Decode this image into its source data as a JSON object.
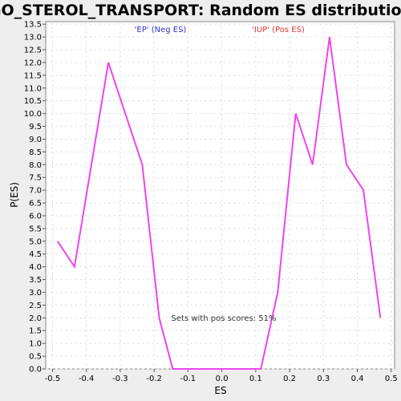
{
  "chart_data": {
    "type": "line",
    "title": "GO_STEROL_TRANSPORT: Random ES distribution",
    "xlabel": "ES",
    "ylabel": "P(ES)",
    "xlim": [
      -0.52,
      0.51
    ],
    "ylim": [
      0,
      13.6
    ],
    "x_ticks": [
      -0.5,
      -0.4,
      -0.3,
      -0.2,
      -0.1,
      0.0,
      0.1,
      0.2,
      0.3,
      0.4,
      0.5
    ],
    "x_tick_labels": [
      "-0.5",
      "-0.4",
      "-0.3",
      "-0.2",
      "-0.1",
      "0.0",
      "0.1",
      "0.2",
      "0.3",
      "0.4",
      "0.5"
    ],
    "y_ticks": [
      0,
      0.5,
      1,
      1.5,
      2,
      2.5,
      3,
      3.5,
      4,
      4.5,
      5,
      5.5,
      6,
      6.5,
      7,
      7.5,
      8,
      8.5,
      9,
      9.5,
      10,
      10.5,
      11,
      11.5,
      12,
      12.5,
      13,
      13.5
    ],
    "y_tick_labels": [
      "0.0",
      "0.5",
      "1.0",
      "1.5",
      "2.0",
      "2.5",
      "3.0",
      "3.5",
      "4.0",
      "4.5",
      "5.0",
      "5.5",
      "6.0",
      "6.5",
      "7.0",
      "7.5",
      "8.0",
      "8.5",
      "9.0",
      "9.5",
      "10.0",
      "10.5",
      "11.0",
      "11.5",
      "12.0",
      "12.5",
      "13.0",
      "13.5"
    ],
    "grid": true,
    "series": [
      {
        "color": "#ee44ee",
        "x": [
          -0.485,
          -0.435,
          -0.335,
          -0.235,
          -0.185,
          -0.145,
          -0.1,
          0.0,
          0.115,
          0.165,
          0.218,
          0.268,
          0.318,
          0.368,
          0.418,
          0.468
        ],
        "y": [
          5,
          4,
          12,
          8,
          2,
          0,
          0,
          0,
          0,
          3,
          10,
          8,
          13,
          8,
          7,
          2
        ]
      }
    ],
    "annotations": [
      {
        "text": "'EP' (Neg ES)",
        "color": "#3333cc"
      },
      {
        "text": "'IUP' (Pos ES)",
        "color": "#dd3333"
      },
      {
        "text": "Sets with pos scores: 51%",
        "color": "#333333"
      }
    ]
  }
}
